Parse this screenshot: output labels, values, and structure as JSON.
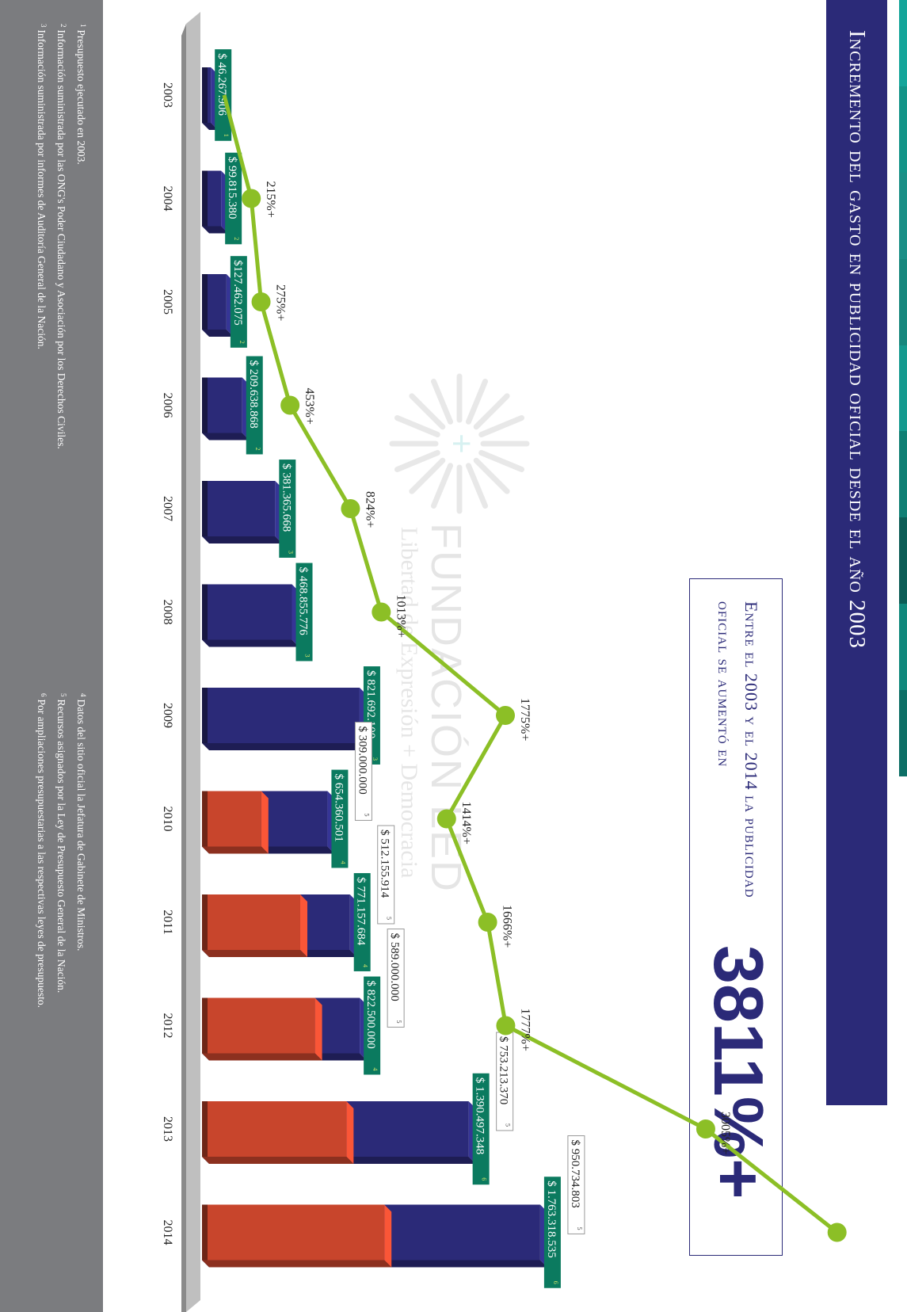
{
  "title": "Incremento del gasto en publicidad oficial desde el año 2003",
  "callout": {
    "text": "Entre el 2003 y el 2014 la publicidad oficial se aumentó en",
    "value": "3811%+"
  },
  "watermark": {
    "name": "FUNDACIÓN LED",
    "tagline": "Libertad de Expresión + Democracia"
  },
  "colors": {
    "navy": "#2b2a78",
    "orange": "#c8452c",
    "green_line": "#8cbf26",
    "label_green": "#0b7a5f",
    "footer_gray": "#7b7c7f"
  },
  "chart_data": {
    "type": "bar",
    "categories": [
      "2003",
      "2004",
      "2005",
      "2006",
      "2007",
      "2008",
      "2009",
      "2010",
      "2011",
      "2012",
      "2013",
      "2014"
    ],
    "series": [
      {
        "values": [
          46267906,
          99815380,
          127462075,
          209638868,
          381365668,
          468855776,
          821692100,
          654360501,
          771157684,
          822500000,
          1390497348,
          1763318535
        ],
        "labels": [
          "$ 46.267.906",
          "$ 99.815.380",
          "$127.462.075",
          "$ 209.638.868",
          "$ 381.365.668",
          "$ 468.855.776",
          "$ 821.692.100",
          "$ 654.360.501",
          "$ 771.157.684",
          "$ 822.500.000",
          "$ 1.390.497.348",
          "$ 1.763.318.535"
        ],
        "notes": [
          "1",
          "2",
          "2",
          "2",
          "3",
          "3",
          "3",
          "4",
          "4",
          "4",
          "6",
          "6"
        ]
      },
      {
        "values": [
          null,
          null,
          null,
          null,
          null,
          null,
          null,
          309000000,
          512155914,
          589000000,
          753213370,
          950734803
        ],
        "labels": [
          "",
          "",
          "",
          "",
          "",
          "",
          "",
          "$ 309.000.000",
          "$ 512.155.914",
          "$ 589.000.000",
          "$ 753.213.370",
          "$ 950.734.803"
        ],
        "notes": [
          "",
          "",
          "",
          "",
          "",
          "",
          "",
          "5",
          "5",
          "5",
          "5",
          "5"
        ]
      }
    ],
    "line": {
      "values": [
        null,
        215,
        275,
        453,
        824,
        1013,
        1775,
        1414,
        1666,
        1777,
        3005,
        3811
      ],
      "labels": [
        "",
        "215%+",
        "275%+",
        "453%+",
        "824%+",
        "1013%+",
        "1775%+",
        "1414%+",
        "1666%+",
        "1777%+",
        "3005%+",
        ""
      ],
      "unit": "%"
    },
    "ylim": [
      0,
      1900000000
    ],
    "grid": false,
    "legend": "none"
  },
  "footnotes_left": [
    {
      "num": "1",
      "text": "Presupuesto ejecutado en 2003."
    },
    {
      "num": "2",
      "text": "Información suministrada por las ONG's Poder Ciudadano y Asociación por los Derechos Civiles."
    },
    {
      "num": "3",
      "text": "Información suministrada por informes de Auditoría General de la Nación."
    }
  ],
  "footnotes_right": [
    {
      "num": "4",
      "text": "Datos del sitio oficial la Jefatura de Gabinete de Ministros."
    },
    {
      "num": "5",
      "text": "Recursos asignados por la Ley de Presupuesto General de la Nación."
    },
    {
      "num": "6",
      "text": "Por ampliaciones presupuestarias a las respectivas leyes de presupuesto."
    }
  ]
}
